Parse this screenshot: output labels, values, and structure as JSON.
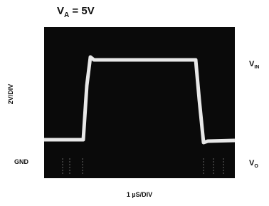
{
  "title": {
    "main": "V",
    "sub": "A",
    "rest": " = 5V"
  },
  "y_scale": "2V/DIV",
  "x_scale": "1 µS/DIV",
  "ground_label": "GND",
  "traces": [
    {
      "main": "V",
      "sub": "IN"
    },
    {
      "main": "V",
      "sub": "O"
    }
  ]
}
